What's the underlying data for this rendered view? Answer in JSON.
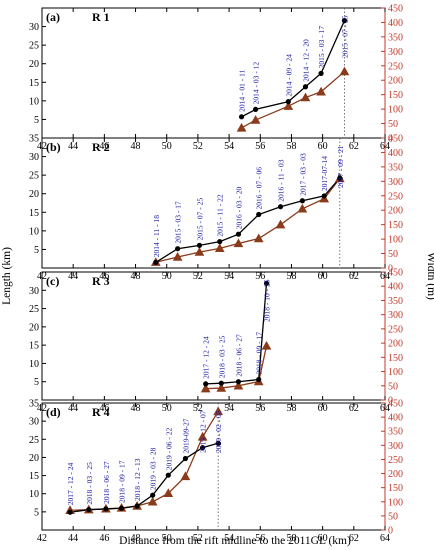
{
  "colors": {
    "length": "#000000",
    "width": "#8b3a1a",
    "right_axis": "#c0392b",
    "dates": "#1a1aa8"
  },
  "labels": {
    "xlabel": "Distance from the rift midline to the 2011GL (km)",
    "ylabel_left": "Length (km)",
    "ylabel_right": "Width (m)"
  },
  "chart_data": [
    {
      "type": "line",
      "panel": "(a)",
      "title": "R 1",
      "xlim": [
        42,
        64
      ],
      "ylim_length": [
        0,
        35
      ],
      "ylim_width": [
        0,
        450
      ],
      "xticks": [
        42,
        44,
        46,
        48,
        50,
        52,
        54,
        56,
        58,
        60,
        62,
        64
      ],
      "yticks_length": [
        5,
        10,
        15,
        20,
        25,
        30
      ],
      "yticks_width": [
        0,
        50,
        100,
        150,
        200,
        250,
        300,
        350,
        400,
        450
      ],
      "dates": [
        "2014 - 01 - 11",
        "2014 - 03 - 12",
        "2014 - 09 - 24",
        "2014 - 12 - 20",
        "2015 - 03 - 17",
        "2015 - 07 - 25"
      ],
      "series": [
        {
          "name": "Length",
          "axis": "left",
          "x": [
            54.8,
            55.7,
            57.8,
            58.9,
            59.9,
            61.4
          ],
          "y": [
            5.7,
            7.7,
            9.8,
            13.8,
            17.4,
            31.6
          ]
        },
        {
          "name": "Width",
          "axis": "right",
          "x": [
            54.8,
            55.7,
            57.8,
            58.9,
            59.9,
            61.4
          ],
          "y": [
            35,
            62,
            110,
            140,
            160,
            230
          ]
        }
      ],
      "vline": 61.4
    },
    {
      "type": "line",
      "panel": "(b)",
      "title": "R 2",
      "xlim": [
        42,
        64
      ],
      "ylim_length": [
        0,
        35
      ],
      "ylim_width": [
        0,
        450
      ],
      "xticks": [
        42,
        44,
        46,
        48,
        50,
        52,
        54,
        56,
        58,
        60,
        62,
        64
      ],
      "yticks_length": [
        5,
        10,
        15,
        20,
        25,
        30,
        35
      ],
      "yticks_width": [
        0,
        50,
        100,
        150,
        200,
        250,
        300,
        350,
        400,
        450
      ],
      "dates": [
        "2014 - 11 - 18",
        "2015 - 03 - 17",
        "2015 - 07 - 25",
        "2015 - 11 - 22",
        "2016 - 03 - 20",
        "2016 - 07 - 06",
        "2016 - 11 - 03",
        "2017 - 03 - 03",
        "2017-07-14",
        "2017 - 09 - 21"
      ],
      "series": [
        {
          "name": "Length",
          "axis": "left",
          "x": [
            49.3,
            50.7,
            52.1,
            53.4,
            54.6,
            55.9,
            57.3,
            58.7,
            60.1,
            61.1
          ],
          "y": [
            1.5,
            5.2,
            6.1,
            7.1,
            9.1,
            14.4,
            16.5,
            18.1,
            19.4,
            24.2
          ]
        },
        {
          "name": "Width",
          "axis": "right",
          "x": [
            49.3,
            50.7,
            52.1,
            53.4,
            54.6,
            55.9,
            57.3,
            58.7,
            60.1,
            61.1
          ],
          "y": [
            20,
            38,
            55,
            68,
            85,
            102,
            150,
            205,
            240,
            310
          ]
        }
      ],
      "vline": 61.1
    },
    {
      "type": "line",
      "panel": "(c)",
      "title": "R 3",
      "xlim": [
        42,
        64
      ],
      "ylim_length": [
        0,
        35
      ],
      "ylim_width": [
        0,
        450
      ],
      "xticks": [
        42,
        44,
        46,
        48,
        50,
        52,
        54,
        56,
        58,
        60,
        62,
        64
      ],
      "yticks_length": [
        5,
        10,
        15,
        20,
        25,
        30
      ],
      "yticks_width": [
        0,
        50,
        100,
        150,
        200,
        250,
        300,
        350,
        400,
        450
      ],
      "dates": [
        "2017 - 12 - 24",
        "2018 - 03 - 25",
        "2018 - 06 - 27",
        "2018 - 09 - 17",
        "2018 - 10 - 25"
      ],
      "series": [
        {
          "name": "Length",
          "axis": "left",
          "x": [
            52.5,
            53.5,
            54.6,
            55.9,
            56.4
          ],
          "y": [
            4.4,
            4.6,
            5.0,
            5.6,
            31.9
          ]
        },
        {
          "name": "Width",
          "axis": "right",
          "x": [
            52.5,
            53.5,
            54.6,
            55.9,
            56.4
          ],
          "y": [
            40,
            42,
            50,
            65,
            190
          ]
        }
      ],
      "vline": null
    },
    {
      "type": "line",
      "panel": "(d)",
      "title": "R 4",
      "xlim": [
        42,
        64
      ],
      "ylim_length": [
        0,
        35
      ],
      "ylim_width": [
        0,
        450
      ],
      "xticks": [
        42,
        44,
        46,
        48,
        50,
        52,
        54,
        56,
        58,
        60,
        62,
        64
      ],
      "yticks_length": [
        5,
        10,
        15,
        20,
        25,
        30,
        35
      ],
      "yticks_width": [
        0,
        50,
        100,
        150,
        200,
        250,
        300,
        350,
        400,
        450
      ],
      "dates": [
        "2017 - 12 - 24",
        "2018 - 03 - 25",
        "2018 - 06 - 27",
        "2018 - 09 - 17",
        "2018 - 12 - 13",
        "2019 - 03 - 28",
        "2019 - 06 - 22",
        "2019-09-27",
        "2019 - 12 - 07",
        "2020 - 02 - 05"
      ],
      "series": [
        {
          "name": "Length",
          "axis": "left",
          "x": [
            43.8,
            45.0,
            46.1,
            47.1,
            48.1,
            49.1,
            50.1,
            51.2,
            52.3,
            53.3
          ],
          "y": [
            4.9,
            5.6,
            5.8,
            6.0,
            6.6,
            9.6,
            15.1,
            19.7,
            22.7,
            23.9
          ]
        },
        {
          "name": "Width",
          "axis": "right",
          "x": [
            43.8,
            45.0,
            46.1,
            47.1,
            48.1,
            49.1,
            50.1,
            51.2,
            52.3,
            53.3
          ],
          "y": [
            70,
            72,
            75,
            78,
            85,
            100,
            130,
            190,
            330,
            420
          ]
        }
      ],
      "vline": 53.3
    }
  ]
}
